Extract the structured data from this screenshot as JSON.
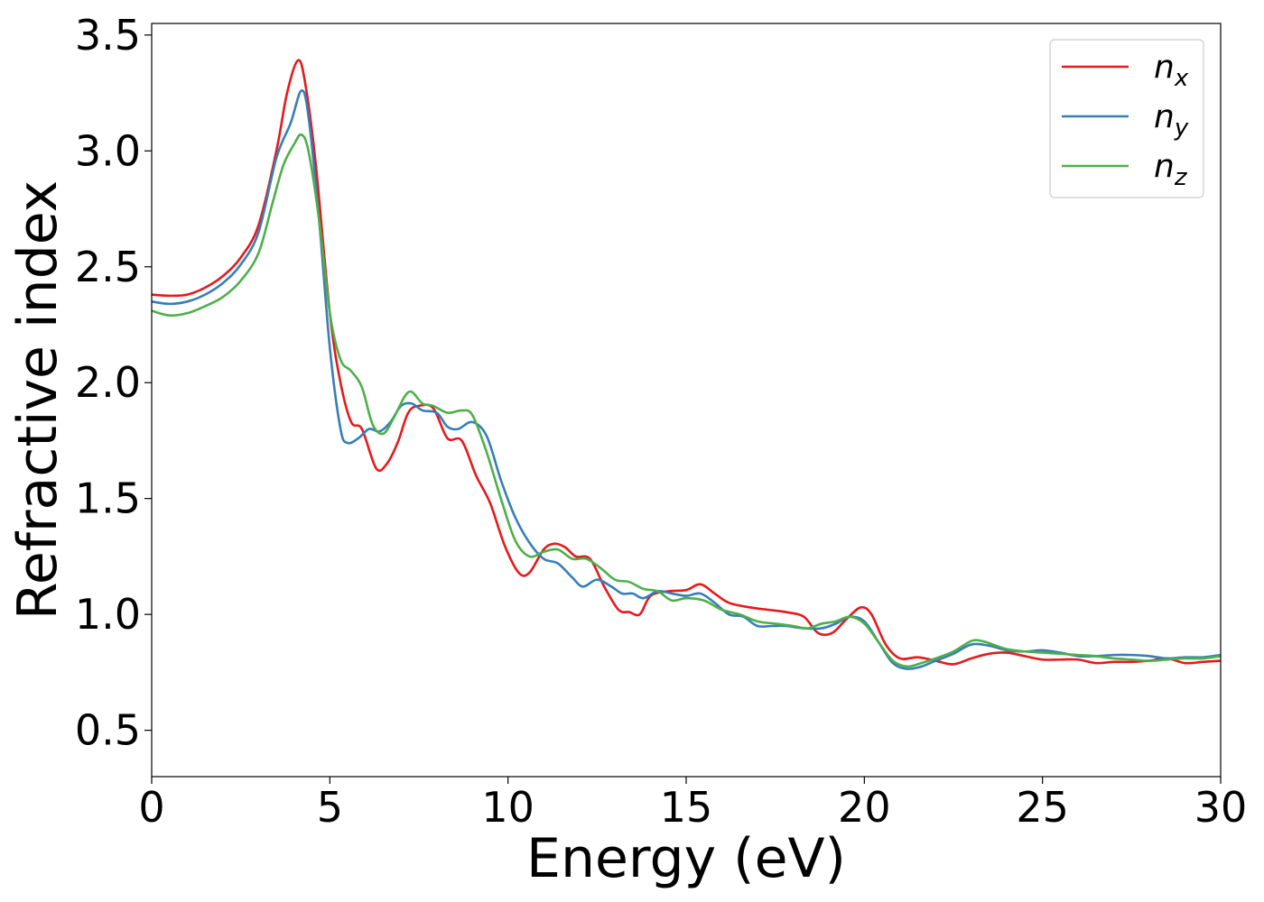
{
  "chart_data": {
    "type": "line",
    "xlabel": "Energy (eV)",
    "ylabel": "Refractive index",
    "xlim": [
      0,
      30
    ],
    "ylim": [
      0.3,
      3.55
    ],
    "xticks": [
      0,
      5,
      10,
      15,
      20,
      25,
      30
    ],
    "xtick_labels": [
      "0",
      "5",
      "10",
      "15",
      "20",
      "25",
      "30"
    ],
    "yticks": [
      0.5,
      1.0,
      1.5,
      2.0,
      2.5,
      3.0,
      3.5
    ],
    "ytick_labels": [
      "0.5",
      "1.0",
      "1.5",
      "2.0",
      "2.5",
      "3.0",
      "3.5"
    ],
    "grid": false,
    "legend_position": "top-right",
    "series": [
      {
        "name": "n_x",
        "label_base": "n",
        "label_sub": "x",
        "color": "#e41a1c",
        "points": [
          [
            0,
            2.38
          ],
          [
            0.5,
            2.375
          ],
          [
            1,
            2.38
          ],
          [
            1.5,
            2.41
          ],
          [
            2,
            2.46
          ],
          [
            2.5,
            2.54
          ],
          [
            3,
            2.68
          ],
          [
            3.5,
            3.0
          ],
          [
            3.8,
            3.25
          ],
          [
            4.1,
            3.39
          ],
          [
            4.3,
            3.3
          ],
          [
            4.6,
            2.95
          ],
          [
            5,
            2.3
          ],
          [
            5.3,
            2.0
          ],
          [
            5.6,
            1.83
          ],
          [
            5.9,
            1.8
          ],
          [
            6.3,
            1.63
          ],
          [
            6.6,
            1.65
          ],
          [
            6.9,
            1.74
          ],
          [
            7.2,
            1.87
          ],
          [
            7.5,
            1.9
          ],
          [
            7.9,
            1.89
          ],
          [
            8.3,
            1.76
          ],
          [
            8.7,
            1.75
          ],
          [
            9.1,
            1.6
          ],
          [
            9.5,
            1.48
          ],
          [
            9.9,
            1.3
          ],
          [
            10.3,
            1.18
          ],
          [
            10.6,
            1.18
          ],
          [
            11,
            1.28
          ],
          [
            11.3,
            1.305
          ],
          [
            11.6,
            1.29
          ],
          [
            11.9,
            1.25
          ],
          [
            12.3,
            1.24
          ],
          [
            12.7,
            1.12
          ],
          [
            13.1,
            1.02
          ],
          [
            13.4,
            1.01
          ],
          [
            13.7,
            1.0
          ],
          [
            14.0,
            1.08
          ],
          [
            14.5,
            1.1
          ],
          [
            15.0,
            1.105
          ],
          [
            15.4,
            1.13
          ],
          [
            15.8,
            1.09
          ],
          [
            16.2,
            1.05
          ],
          [
            16.8,
            1.03
          ],
          [
            17.3,
            1.02
          ],
          [
            17.8,
            1.01
          ],
          [
            18.3,
            0.99
          ],
          [
            18.7,
            0.92
          ],
          [
            19.1,
            0.92
          ],
          [
            19.5,
            0.98
          ],
          [
            19.9,
            1.03
          ],
          [
            20.2,
            1.0
          ],
          [
            20.6,
            0.87
          ],
          [
            21,
            0.81
          ],
          [
            21.5,
            0.815
          ],
          [
            22,
            0.8
          ],
          [
            22.5,
            0.785
          ],
          [
            23,
            0.81
          ],
          [
            23.5,
            0.83
          ],
          [
            24,
            0.835
          ],
          [
            24.5,
            0.82
          ],
          [
            25,
            0.805
          ],
          [
            25.5,
            0.805
          ],
          [
            26,
            0.805
          ],
          [
            26.5,
            0.79
          ],
          [
            27,
            0.795
          ],
          [
            27.5,
            0.795
          ],
          [
            28,
            0.8
          ],
          [
            28.5,
            0.81
          ],
          [
            29,
            0.79
          ],
          [
            29.5,
            0.795
          ],
          [
            30,
            0.8
          ]
        ]
      },
      {
        "name": "n_y",
        "label_base": "n",
        "label_sub": "y",
        "color": "#377eb8",
        "points": [
          [
            0,
            2.35
          ],
          [
            0.5,
            2.34
          ],
          [
            1,
            2.35
          ],
          [
            1.5,
            2.38
          ],
          [
            2,
            2.43
          ],
          [
            2.5,
            2.51
          ],
          [
            3,
            2.65
          ],
          [
            3.5,
            2.97
          ],
          [
            3.9,
            3.12
          ],
          [
            4.2,
            3.26
          ],
          [
            4.4,
            3.15
          ],
          [
            4.7,
            2.7
          ],
          [
            5,
            2.15
          ],
          [
            5.3,
            1.8
          ],
          [
            5.5,
            1.74
          ],
          [
            5.8,
            1.76
          ],
          [
            6.1,
            1.8
          ],
          [
            6.4,
            1.79
          ],
          [
            6.7,
            1.83
          ],
          [
            7.0,
            1.9
          ],
          [
            7.3,
            1.91
          ],
          [
            7.6,
            1.88
          ],
          [
            8.0,
            1.87
          ],
          [
            8.3,
            1.81
          ],
          [
            8.6,
            1.8
          ],
          [
            9.0,
            1.83
          ],
          [
            9.4,
            1.77
          ],
          [
            9.8,
            1.58
          ],
          [
            10.2,
            1.42
          ],
          [
            10.6,
            1.31
          ],
          [
            11,
            1.24
          ],
          [
            11.4,
            1.22
          ],
          [
            11.8,
            1.16
          ],
          [
            12.1,
            1.12
          ],
          [
            12.5,
            1.15
          ],
          [
            12.9,
            1.12
          ],
          [
            13.2,
            1.09
          ],
          [
            13.5,
            1.09
          ],
          [
            13.8,
            1.07
          ],
          [
            14.2,
            1.1
          ],
          [
            14.6,
            1.09
          ],
          [
            15,
            1.08
          ],
          [
            15.4,
            1.09
          ],
          [
            15.8,
            1.05
          ],
          [
            16.2,
            1.0
          ],
          [
            16.6,
            0.99
          ],
          [
            17,
            0.95
          ],
          [
            17.4,
            0.95
          ],
          [
            17.8,
            0.95
          ],
          [
            18.3,
            0.94
          ],
          [
            18.8,
            0.94
          ],
          [
            19.2,
            0.96
          ],
          [
            19.6,
            0.99
          ],
          [
            20,
            0.97
          ],
          [
            20.4,
            0.88
          ],
          [
            20.8,
            0.79
          ],
          [
            21.2,
            0.765
          ],
          [
            21.6,
            0.775
          ],
          [
            22,
            0.8
          ],
          [
            22.5,
            0.83
          ],
          [
            23,
            0.87
          ],
          [
            23.5,
            0.865
          ],
          [
            24,
            0.845
          ],
          [
            24.5,
            0.84
          ],
          [
            25,
            0.845
          ],
          [
            25.5,
            0.835
          ],
          [
            26,
            0.82
          ],
          [
            26.5,
            0.82
          ],
          [
            27,
            0.825
          ],
          [
            27.5,
            0.825
          ],
          [
            28,
            0.82
          ],
          [
            28.5,
            0.81
          ],
          [
            29,
            0.815
          ],
          [
            29.5,
            0.815
          ],
          [
            30,
            0.825
          ]
        ]
      },
      {
        "name": "n_z",
        "label_base": "n",
        "label_sub": "z",
        "color": "#4daf4a",
        "points": [
          [
            0,
            2.31
          ],
          [
            0.5,
            2.29
          ],
          [
            1,
            2.3
          ],
          [
            1.5,
            2.33
          ],
          [
            2,
            2.37
          ],
          [
            2.5,
            2.44
          ],
          [
            3,
            2.56
          ],
          [
            3.4,
            2.78
          ],
          [
            3.7,
            2.94
          ],
          [
            4.0,
            3.03
          ],
          [
            4.2,
            3.07
          ],
          [
            4.4,
            3.0
          ],
          [
            4.7,
            2.7
          ],
          [
            5,
            2.3
          ],
          [
            5.3,
            2.1
          ],
          [
            5.6,
            2.05
          ],
          [
            5.9,
            1.98
          ],
          [
            6.2,
            1.82
          ],
          [
            6.5,
            1.78
          ],
          [
            6.8,
            1.85
          ],
          [
            7.1,
            1.94
          ],
          [
            7.3,
            1.96
          ],
          [
            7.6,
            1.91
          ],
          [
            7.9,
            1.9
          ],
          [
            8.3,
            1.87
          ],
          [
            8.7,
            1.88
          ],
          [
            9.0,
            1.86
          ],
          [
            9.4,
            1.7
          ],
          [
            9.8,
            1.5
          ],
          [
            10.2,
            1.32
          ],
          [
            10.6,
            1.25
          ],
          [
            11,
            1.27
          ],
          [
            11.4,
            1.28
          ],
          [
            11.8,
            1.24
          ],
          [
            12.2,
            1.24
          ],
          [
            12.6,
            1.2
          ],
          [
            13,
            1.15
          ],
          [
            13.4,
            1.14
          ],
          [
            13.8,
            1.11
          ],
          [
            14.2,
            1.1
          ],
          [
            14.6,
            1.06
          ],
          [
            15,
            1.07
          ],
          [
            15.5,
            1.06
          ],
          [
            16,
            1.02
          ],
          [
            16.5,
            1.0
          ],
          [
            17,
            0.97
          ],
          [
            17.5,
            0.96
          ],
          [
            18,
            0.95
          ],
          [
            18.4,
            0.94
          ],
          [
            18.8,
            0.96
          ],
          [
            19.2,
            0.97
          ],
          [
            19.6,
            0.99
          ],
          [
            20,
            0.96
          ],
          [
            20.4,
            0.88
          ],
          [
            20.8,
            0.8
          ],
          [
            21.2,
            0.775
          ],
          [
            21.6,
            0.79
          ],
          [
            22,
            0.81
          ],
          [
            22.5,
            0.84
          ],
          [
            23,
            0.885
          ],
          [
            23.3,
            0.885
          ],
          [
            23.7,
            0.865
          ],
          [
            24,
            0.85
          ],
          [
            24.5,
            0.84
          ],
          [
            25,
            0.835
          ],
          [
            25.5,
            0.83
          ],
          [
            26,
            0.825
          ],
          [
            26.5,
            0.82
          ],
          [
            27,
            0.81
          ],
          [
            27.5,
            0.805
          ],
          [
            28,
            0.8
          ],
          [
            28.5,
            0.805
          ],
          [
            29,
            0.81
          ],
          [
            29.5,
            0.81
          ],
          [
            30,
            0.82
          ]
        ]
      }
    ]
  }
}
